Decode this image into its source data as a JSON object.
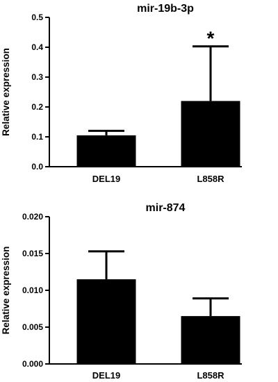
{
  "chart_data": [
    {
      "type": "bar",
      "title": "mir-19b-3p",
      "ylabel": "Relative expression",
      "xlabel": "",
      "categories": [
        "DEL19",
        "L858R"
      ],
      "values": [
        0.105,
        0.22
      ],
      "error_upper": [
        0.12,
        0.403
      ],
      "ylim": [
        0,
        0.5
      ],
      "yticks": [
        "0.0",
        "0.1",
        "0.2",
        "0.3",
        "0.4",
        "0.5"
      ],
      "annotations": [
        {
          "category": "L858R",
          "text": "*"
        }
      ],
      "bar_color": "#000000",
      "grid": false
    },
    {
      "type": "bar",
      "title": "mir-874",
      "ylabel": "Relative expression",
      "xlabel": "",
      "categories": [
        "DEL19",
        "L858R"
      ],
      "values": [
        0.0115,
        0.0065
      ],
      "error_upper": [
        0.0153,
        0.0089
      ],
      "ylim": [
        0,
        0.02
      ],
      "yticks": [
        "0.000",
        "0.005",
        "0.010",
        "0.015",
        "0.020"
      ],
      "annotations": [],
      "bar_color": "#000000",
      "grid": false
    }
  ]
}
